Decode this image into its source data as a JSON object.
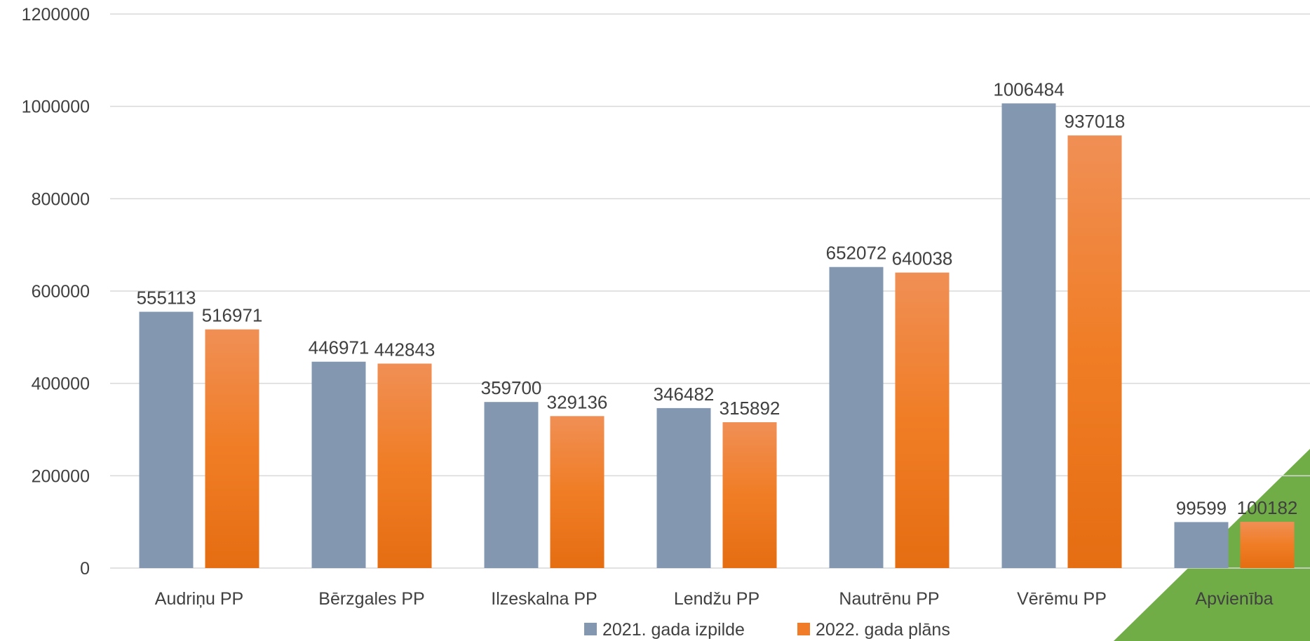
{
  "chart_data": {
    "type": "bar",
    "categories": [
      "Audriņu PP",
      "Bērzgales PP",
      "Ilzeskalna PP",
      "Lendžu PP",
      "Nautrēnu PP",
      "Vērēmu PP",
      "Apvienība"
    ],
    "series": [
      {
        "name": "2021. gada izpilde",
        "values": [
          555113,
          446971,
          359700,
          346482,
          652072,
          1006484,
          99599
        ],
        "color": "#8497b0"
      },
      {
        "name": "2022. gada plāns",
        "values": [
          516971,
          442843,
          329136,
          315892,
          640038,
          937018,
          100182
        ],
        "color": "#f07c2a"
      }
    ],
    "yticks": [
      "0",
      "200000",
      "400000",
      "600000",
      "800000",
      "1000000",
      "1200000"
    ],
    "ylim": [
      0,
      1200000
    ],
    "grid": true,
    "legend": "bottom",
    "colors": {
      "gridline": "#d9d9d9",
      "axis": "#d9d9d9",
      "text": "#404040",
      "decor_green": "#70ad47",
      "highlight_label": "#9bbb59"
    }
  }
}
